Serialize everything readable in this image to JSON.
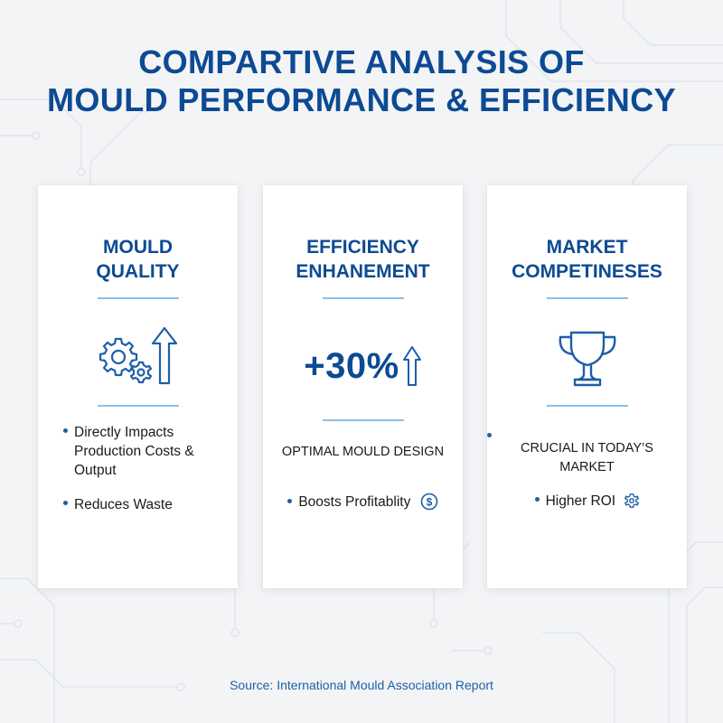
{
  "title": {
    "line1": "COMPARTIVE ANALYSIS OF",
    "line2": "MOULD PERFORMANCE & EFFICIENCY"
  },
  "colors": {
    "primary_blue": "#0d4a93",
    "accent_blue": "#1d5fa8",
    "divider_blue": "#8cc0e8",
    "background": "#f3f4f6",
    "card": "#ffffff"
  },
  "cards": [
    {
      "title_line1": "MOULD",
      "title_line2": "QUALITY",
      "icon": "gears-with-up-arrow-icon",
      "bullets": [
        "Directly Impacts Production Costs & Output",
        "Reduces Waste"
      ]
    },
    {
      "title_line1": "EFFICIENCY",
      "title_line2": "ENHANEMENT",
      "stat": "+30%",
      "stat_icon": "up-arrow-icon",
      "caption": "OPTIMAL MOULD DESIGN",
      "bullets": [
        "Boosts Profitablity"
      ],
      "bullet_icon": "dollar-coin-icon"
    },
    {
      "title_line1": "MARKET",
      "title_line2": "COMPETINESES",
      "icon": "trophy-icon",
      "bullet1_line1": "CRUCIAL IN TODAY’S",
      "bullet1_line2": "MARKET",
      "bullets": [
        "Higher ROI"
      ],
      "bullet_icon": "gear-icon"
    }
  ],
  "source": "Source: International Mould Association Report"
}
